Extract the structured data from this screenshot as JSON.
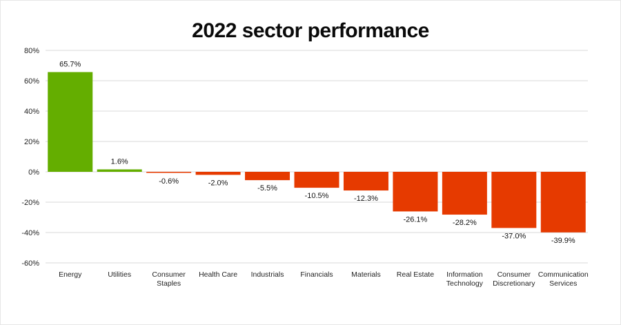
{
  "chart_data": {
    "type": "bar",
    "title": "2022 sector performance",
    "xlabel": "",
    "ylabel": "",
    "ylim": [
      -60,
      80
    ],
    "yticks": [
      80,
      60,
      40,
      20,
      0,
      -20,
      -40,
      -60
    ],
    "ytick_labels": [
      "80%",
      "60%",
      "40%",
      "20%",
      "0%",
      "-20%",
      "-40%",
      "-60%"
    ],
    "grid": true,
    "legend": "none",
    "categories": [
      [
        "Energy"
      ],
      [
        "Utilities"
      ],
      [
        "Consumer",
        "Staples"
      ],
      [
        "Health Care"
      ],
      [
        "Industrials"
      ],
      [
        "Financials"
      ],
      [
        "Materials"
      ],
      [
        "Real Estate"
      ],
      [
        "Information",
        "Technology"
      ],
      [
        "Consumer",
        "Discretionary"
      ],
      [
        "Communication",
        "Services"
      ]
    ],
    "values": [
      65.7,
      1.6,
      -0.6,
      -2.0,
      -5.5,
      -10.5,
      -12.3,
      -26.1,
      -28.2,
      -37.0,
      -39.9
    ],
    "data_labels": [
      "65.7%",
      "1.6%",
      "-0.6%",
      "-2.0%",
      "-5.5%",
      "-10.5%",
      "-12.3%",
      "-26.1%",
      "-28.2%",
      "-37.0%",
      "-39.9%"
    ],
    "colors": {
      "positive": "#64AE00",
      "negative": "#E63A00",
      "grid": "#d9d9d9"
    }
  }
}
